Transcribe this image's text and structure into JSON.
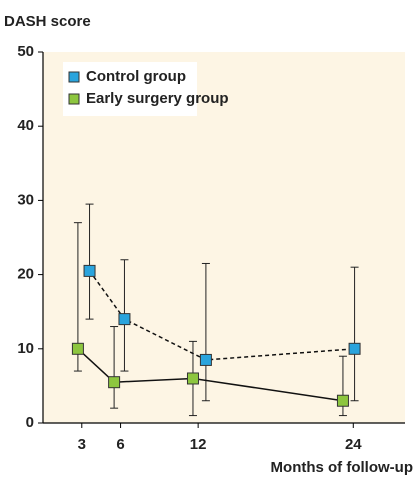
{
  "chart_data": {
    "type": "line",
    "y_label": "DASH score",
    "x_label": "Months of follow-up",
    "xlim": [
      0,
      28
    ],
    "xticks": [
      3,
      6,
      12,
      24
    ],
    "ylim": [
      0,
      50
    ],
    "yticks": [
      0,
      10,
      20,
      30,
      40,
      50
    ],
    "background": "#fdf5e4",
    "series": [
      {
        "name": "Control group",
        "color": "#2aa4dd",
        "dash": true,
        "x": [
          3.6,
          6.3,
          12.6,
          24.1
        ],
        "values": [
          20.5,
          14,
          8.5,
          10
        ],
        "low": [
          14,
          7,
          3,
          3
        ],
        "high": [
          29.5,
          22,
          21.5,
          21
        ]
      },
      {
        "name": "Early surgery group",
        "color": "#8dc63f",
        "dash": false,
        "x": [
          2.7,
          5.5,
          11.6,
          23.2
        ],
        "values": [
          10,
          5.5,
          6,
          3
        ],
        "low": [
          7,
          2,
          1,
          1
        ],
        "high": [
          27,
          13,
          11,
          9
        ]
      }
    ]
  }
}
